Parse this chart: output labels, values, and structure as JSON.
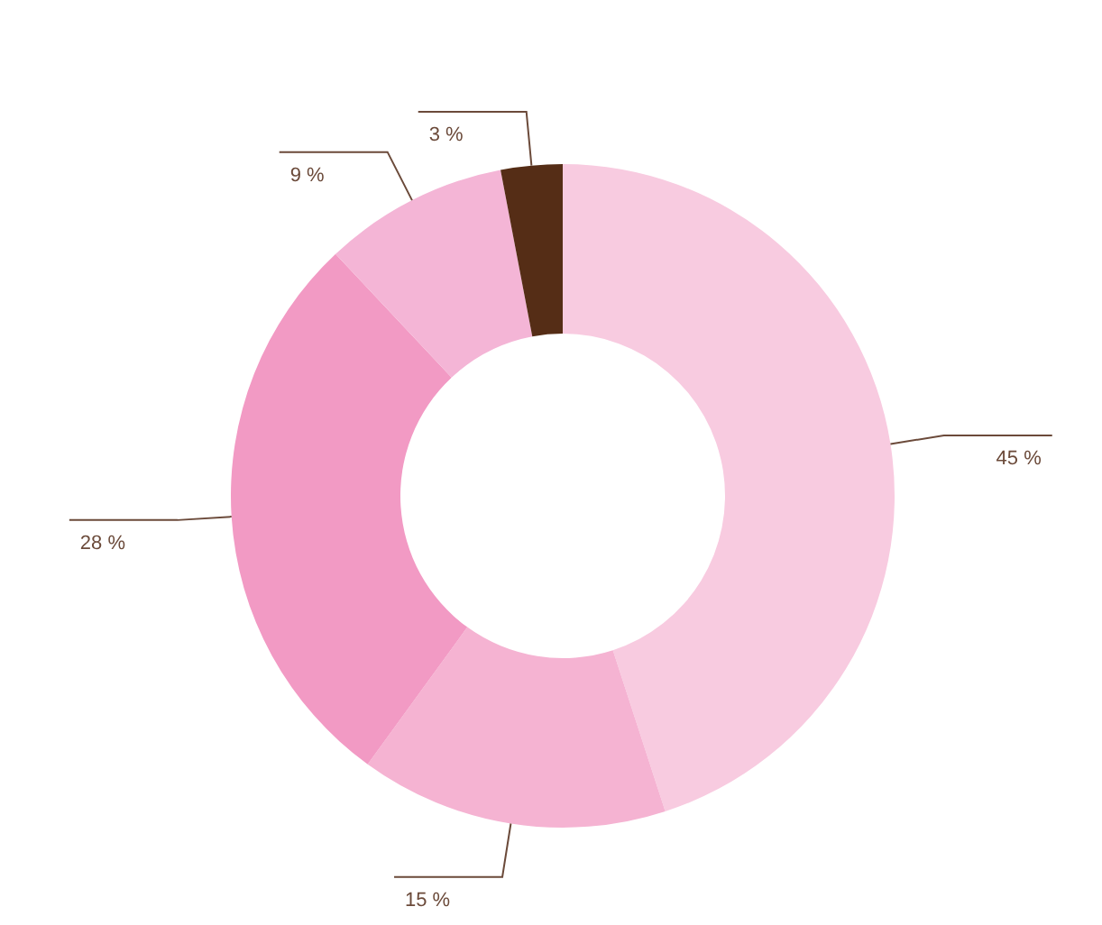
{
  "chart_data": {
    "type": "donut",
    "categories": [
      null,
      null,
      null,
      null,
      null
    ],
    "values": [
      45,
      15,
      28,
      9,
      3
    ],
    "colors": [
      "#f8cbe0",
      "#f5b3d2",
      "#f29ac4",
      "#f4b5d6",
      "#552d16"
    ],
    "value_labels": [
      "45 %",
      "15 %",
      "28 %",
      "9 %",
      "3 %"
    ],
    "legend": false
  }
}
